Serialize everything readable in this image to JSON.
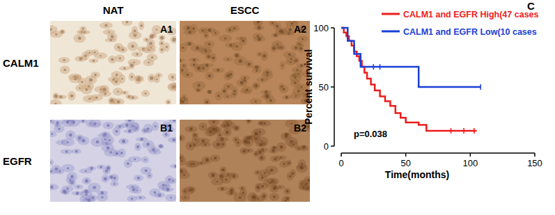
{
  "figure": {
    "columns": [
      "NAT",
      "ESCC"
    ],
    "rows": [
      "CALM1",
      "EGFR"
    ],
    "panels": [
      [
        "A1",
        "A2"
      ],
      [
        "B1",
        "B2"
      ]
    ],
    "panel_letter": "C"
  },
  "chart_data": {
    "type": "line",
    "x_label": "Time(months)",
    "y_label": "Percent survival",
    "xlim": [
      0,
      150
    ],
    "xticks": [
      0,
      50,
      100,
      150
    ],
    "ylim": [
      0,
      100
    ],
    "yticks": [
      0,
      50,
      100
    ],
    "annotation": "p=0.038",
    "legend": "top-right",
    "line_style": "step",
    "series": [
      {
        "name": "CALM1 and EGFR High(47 cases",
        "color": "#ee1c1c",
        "x": [
          0,
          2,
          4,
          6,
          8,
          10,
          12,
          14,
          16,
          18,
          20,
          23,
          26,
          30,
          34,
          38,
          42,
          46,
          50,
          60,
          66,
          105
        ],
        "values": [
          100,
          96,
          93,
          89,
          85,
          80,
          76,
          72,
          67,
          62,
          57,
          52,
          47,
          42,
          38,
          34,
          28,
          24,
          20,
          18,
          13,
          13
        ],
        "censored_x": [
          85,
          95,
          103
        ],
        "censored_values": [
          13,
          13,
          13
        ]
      },
      {
        "name": "CALM1  and EGFR Low(10 cases",
        "color": "#1a3fd6",
        "x": [
          0,
          5,
          10,
          15,
          60,
          108
        ],
        "values": [
          100,
          89,
          78,
          67,
          50,
          50
        ],
        "censored_x": [
          25,
          30,
          108
        ],
        "censored_values": [
          67,
          67,
          50
        ]
      }
    ]
  }
}
